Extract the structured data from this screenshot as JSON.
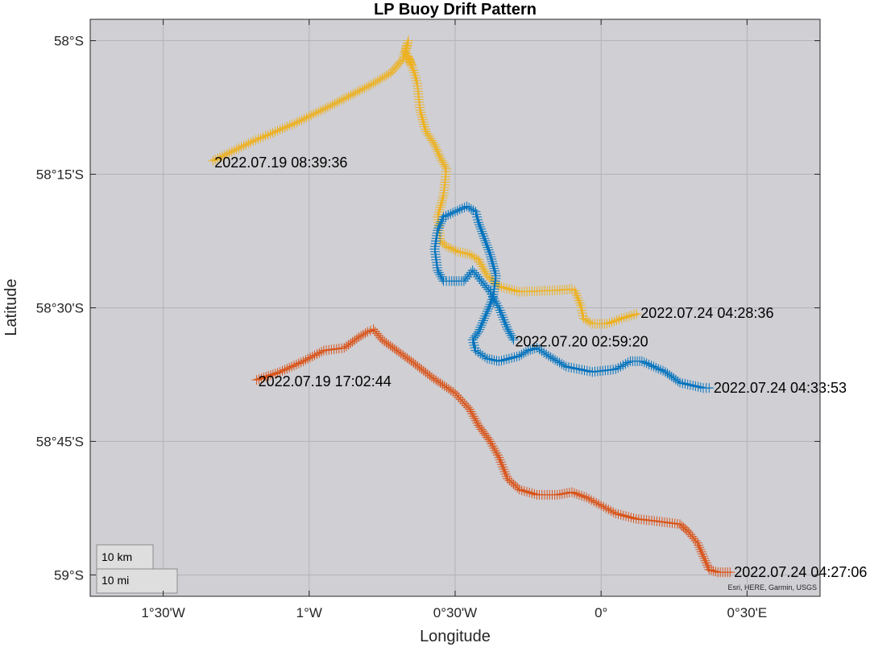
{
  "title": "LP Buoy Drift Pattern",
  "xlabel": "Longitude",
  "ylabel": "Latitude",
  "attribution": "Esri, HERE, Garmin, USGS",
  "scalebar": {
    "km_label": "10 km",
    "mi_label": "10 mi"
  },
  "colors": {
    "map_background": "#cfcfd4",
    "blue_track": "#0072bd",
    "orange_track": "#d95319",
    "yellow_track": "#edb120"
  },
  "chart_data": {
    "type": "line",
    "xlim": [
      -1.75,
      0.75
    ],
    "ylim": [
      -59.04,
      -57.96
    ],
    "grid": true,
    "x_ticks": [
      {
        "value": -1.5,
        "label": "1°30'W"
      },
      {
        "value": -1.0,
        "label": "1°W"
      },
      {
        "value": -0.5,
        "label": "0°30'W"
      },
      {
        "value": 0.0,
        "label": "0°"
      },
      {
        "value": 0.5,
        "label": "0°30'E"
      }
    ],
    "y_ticks": [
      {
        "value": -58.0,
        "label": "58°S"
      },
      {
        "value": -58.25,
        "label": "58°15'S"
      },
      {
        "value": -58.5,
        "label": "58°30'S"
      },
      {
        "value": -58.75,
        "label": "58°45'S"
      },
      {
        "value": -59.0,
        "label": "59°S"
      }
    ],
    "series": [
      {
        "color": "#edb120",
        "start_label": "2022.07.19 08:39:36",
        "end_label": "2022.07.24 04:28:36",
        "lon": [
          -1.33,
          -1.2,
          -1.05,
          -0.92,
          -0.78,
          -0.72,
          -0.68,
          -0.66,
          -0.67,
          -0.65,
          -0.66,
          -0.64,
          -0.63,
          -0.62,
          -0.6,
          -0.57,
          -0.55,
          -0.53,
          -0.54,
          -0.56,
          -0.55,
          -0.53,
          -0.49,
          -0.45,
          -0.42,
          -0.39,
          -0.35,
          -0.28,
          -0.15,
          -0.1,
          -0.09,
          -0.07,
          -0.06,
          -0.03,
          0.02,
          0.07,
          0.13
        ],
        "lat": [
          -58.225,
          -58.19,
          -58.155,
          -58.12,
          -58.08,
          -58.06,
          -58.035,
          -58.0,
          -58.02,
          -58.045,
          -58.03,
          -58.06,
          -58.08,
          -58.13,
          -58.17,
          -58.195,
          -58.22,
          -58.24,
          -58.29,
          -58.33,
          -58.375,
          -58.385,
          -58.395,
          -58.4,
          -58.41,
          -58.44,
          -58.46,
          -58.47,
          -58.467,
          -58.465,
          -58.468,
          -58.495,
          -58.52,
          -58.53,
          -58.53,
          -58.52,
          -58.51
        ]
      },
      {
        "color": "#0072bd",
        "start_label": "2022.07.20 02:59:20",
        "end_label": "2022.07.24 04:33:53",
        "lon": [
          -0.3,
          -0.32,
          -0.35,
          -0.38,
          -0.41,
          -0.44,
          -0.47,
          -0.52,
          -0.54,
          -0.56,
          -0.57,
          -0.56,
          -0.54,
          -0.5,
          -0.46,
          -0.43,
          -0.42,
          -0.4,
          -0.38,
          -0.36,
          -0.37,
          -0.4,
          -0.42,
          -0.44,
          -0.43,
          -0.39,
          -0.35,
          -0.28,
          -0.25,
          -0.22,
          -0.18,
          -0.12,
          -0.03,
          0.05,
          0.1,
          0.14,
          0.18,
          0.22,
          0.27,
          0.35,
          0.38
        ],
        "lat": [
          -58.56,
          -58.54,
          -58.5,
          -58.47,
          -58.45,
          -58.43,
          -58.45,
          -58.45,
          -58.45,
          -58.43,
          -58.39,
          -58.355,
          -58.33,
          -58.32,
          -58.31,
          -58.32,
          -58.34,
          -58.37,
          -58.4,
          -58.44,
          -58.48,
          -58.52,
          -58.545,
          -58.56,
          -58.58,
          -58.595,
          -58.6,
          -58.59,
          -58.58,
          -58.575,
          -58.59,
          -58.61,
          -58.62,
          -58.615,
          -58.6,
          -58.6,
          -58.61,
          -58.62,
          -58.64,
          -58.65,
          -58.65
        ]
      },
      {
        "color": "#d95319",
        "start_label": "2022.07.19 17:02:44",
        "end_label": "2022.07.24 04:27:06",
        "lon": [
          -1.18,
          -1.1,
          -1.02,
          -0.95,
          -0.88,
          -0.83,
          -0.8,
          -0.78,
          -0.75,
          -0.7,
          -0.65,
          -0.58,
          -0.5,
          -0.45,
          -0.42,
          -0.38,
          -0.35,
          -0.32,
          -0.28,
          -0.22,
          -0.15,
          -0.1,
          -0.05,
          0.0,
          0.05,
          0.12,
          0.2,
          0.27,
          0.3,
          0.33,
          0.35,
          0.37,
          0.4,
          0.45
        ],
        "lat": [
          -58.635,
          -58.62,
          -58.6,
          -58.58,
          -58.575,
          -58.555,
          -58.545,
          -58.54,
          -58.56,
          -58.58,
          -58.6,
          -58.63,
          -58.66,
          -58.69,
          -58.72,
          -58.75,
          -58.78,
          -58.82,
          -58.84,
          -58.85,
          -58.85,
          -58.845,
          -58.855,
          -58.87,
          -58.885,
          -58.895,
          -58.9,
          -58.905,
          -58.92,
          -58.94,
          -58.965,
          -58.99,
          -58.995,
          -58.995
        ]
      }
    ]
  }
}
